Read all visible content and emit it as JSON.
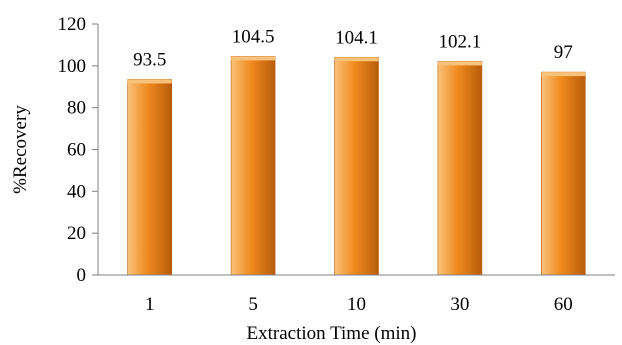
{
  "chart_data": {
    "type": "bar",
    "title": "",
    "xlabel": "Extraction Time (min)",
    "ylabel": "%Recovery",
    "categories": [
      "1",
      "5",
      "10",
      "30",
      "60"
    ],
    "values": [
      93.5,
      104.5,
      104.1,
      102.1,
      97
    ],
    "value_labels": [
      "93.5",
      "104.5",
      "104.1",
      "102.1",
      "97"
    ],
    "ylim": [
      0,
      120
    ],
    "yticks": [
      "0",
      "20",
      "40",
      "60",
      "80",
      "100",
      "120"
    ],
    "grid": false,
    "legend": "none",
    "colors": {
      "bar_light": "#f9c27a",
      "bar_mid": "#f08a1e",
      "bar_dark": "#b85c0b",
      "axis": "#808080"
    }
  }
}
